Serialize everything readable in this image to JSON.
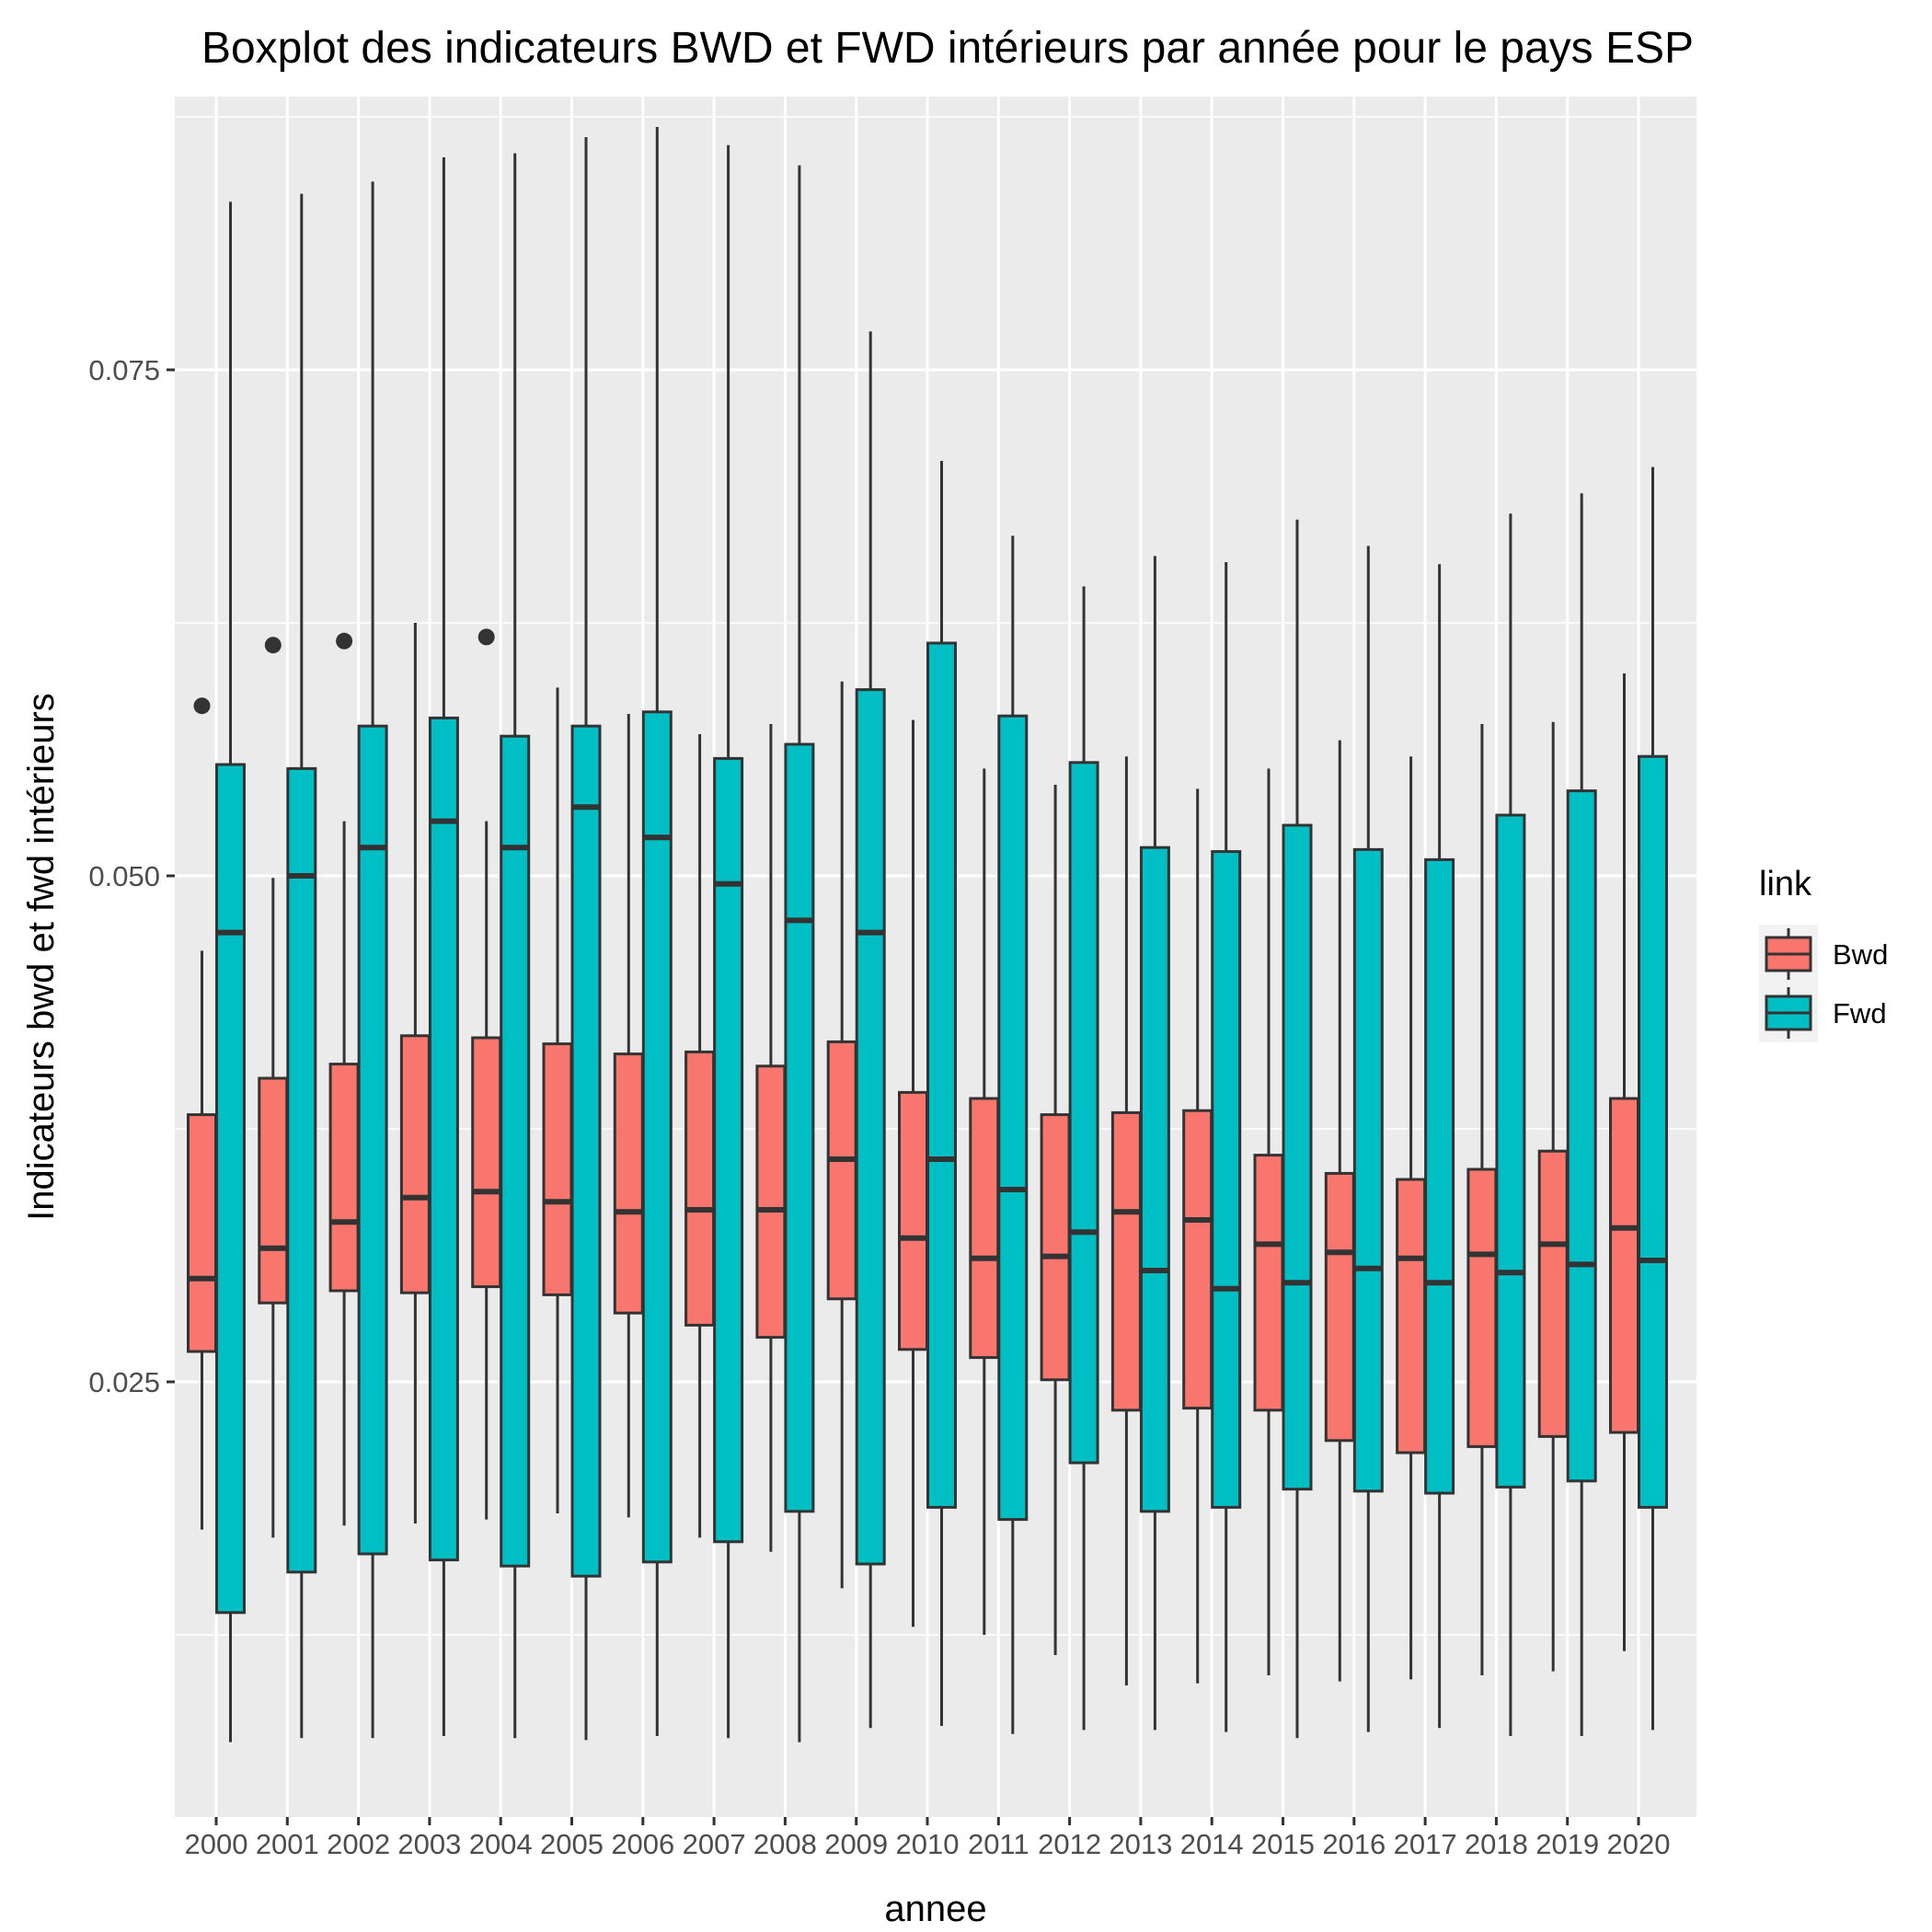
{
  "chart_data": {
    "type": "boxplot",
    "title": "Boxplot des indicateurs BWD et FWD intérieurs par année pour le pays ESP",
    "xlabel": "annee",
    "ylabel": "Indicateurs bwd et fwd intérieurs",
    "ylim": [
      0.0035,
      0.0885
    ],
    "yticks": [
      0.025,
      0.05,
      0.075
    ],
    "ytick_labels": [
      "0.025",
      "0.050",
      "0.075"
    ],
    "grid": true,
    "legend": {
      "title": "link",
      "position": "right",
      "entries": [
        "Bwd",
        "Fwd"
      ]
    },
    "categories": [
      "2000",
      "2001",
      "2002",
      "2003",
      "2004",
      "2005",
      "2006",
      "2007",
      "2008",
      "2009",
      "2010",
      "2011",
      "2012",
      "2013",
      "2014",
      "2015",
      "2016",
      "2017",
      "2018",
      "2019",
      "2020"
    ],
    "series": [
      {
        "name": "Bwd",
        "color": "#F8766D",
        "boxes": [
          {
            "min": 0.0177,
            "q1": 0.0265,
            "median": 0.0301,
            "q3": 0.0382,
            "max": 0.0463,
            "outliers": [
              0.0584
            ]
          },
          {
            "min": 0.0173,
            "q1": 0.0289,
            "median": 0.0316,
            "q3": 0.04,
            "max": 0.0499,
            "outliers": [
              0.0614
            ]
          },
          {
            "min": 0.0179,
            "q1": 0.0295,
            "median": 0.0329,
            "q3": 0.0407,
            "max": 0.0527,
            "outliers": [
              0.0616
            ]
          },
          {
            "min": 0.018,
            "q1": 0.0294,
            "median": 0.0341,
            "q3": 0.0421,
            "max": 0.0625,
            "outliers": []
          },
          {
            "min": 0.0182,
            "q1": 0.0297,
            "median": 0.0344,
            "q3": 0.042,
            "max": 0.0527,
            "outliers": [
              0.0618
            ]
          },
          {
            "min": 0.0185,
            "q1": 0.0293,
            "median": 0.0339,
            "q3": 0.0417,
            "max": 0.0593,
            "outliers": []
          },
          {
            "min": 0.0183,
            "q1": 0.0284,
            "median": 0.0334,
            "q3": 0.0412,
            "max": 0.058,
            "outliers": []
          },
          {
            "min": 0.0173,
            "q1": 0.0278,
            "median": 0.0335,
            "q3": 0.0413,
            "max": 0.057,
            "outliers": []
          },
          {
            "min": 0.0166,
            "q1": 0.0272,
            "median": 0.0335,
            "q3": 0.0406,
            "max": 0.0575,
            "outliers": []
          },
          {
            "min": 0.0148,
            "q1": 0.0291,
            "median": 0.036,
            "q3": 0.0418,
            "max": 0.0596,
            "outliers": []
          },
          {
            "min": 0.0129,
            "q1": 0.0266,
            "median": 0.0321,
            "q3": 0.0393,
            "max": 0.0577,
            "outliers": []
          },
          {
            "min": 0.0125,
            "q1": 0.0262,
            "median": 0.0311,
            "q3": 0.039,
            "max": 0.0553,
            "outliers": []
          },
          {
            "min": 0.0115,
            "q1": 0.0251,
            "median": 0.0312,
            "q3": 0.0382,
            "max": 0.0545,
            "outliers": []
          },
          {
            "min": 0.01,
            "q1": 0.0236,
            "median": 0.0334,
            "q3": 0.0383,
            "max": 0.0559,
            "outliers": []
          },
          {
            "min": 0.0101,
            "q1": 0.0237,
            "median": 0.033,
            "q3": 0.0384,
            "max": 0.0543,
            "outliers": []
          },
          {
            "min": 0.0105,
            "q1": 0.0236,
            "median": 0.0318,
            "q3": 0.0362,
            "max": 0.0553,
            "outliers": []
          },
          {
            "min": 0.0102,
            "q1": 0.0221,
            "median": 0.0314,
            "q3": 0.0353,
            "max": 0.0567,
            "outliers": []
          },
          {
            "min": 0.0103,
            "q1": 0.0215,
            "median": 0.0311,
            "q3": 0.035,
            "max": 0.0559,
            "outliers": []
          },
          {
            "min": 0.0105,
            "q1": 0.0218,
            "median": 0.0313,
            "q3": 0.0355,
            "max": 0.0575,
            "outliers": []
          },
          {
            "min": 0.0107,
            "q1": 0.0223,
            "median": 0.0318,
            "q3": 0.0364,
            "max": 0.0576,
            "outliers": []
          },
          {
            "min": 0.0117,
            "q1": 0.0225,
            "median": 0.0326,
            "q3": 0.039,
            "max": 0.06,
            "outliers": []
          }
        ]
      },
      {
        "name": "Fwd",
        "color": "#00BFC4",
        "boxes": [
          {
            "min": 0.0072,
            "q1": 0.0136,
            "median": 0.0472,
            "q3": 0.0555,
            "max": 0.0833,
            "outliers": []
          },
          {
            "min": 0.0074,
            "q1": 0.0156,
            "median": 0.05,
            "q3": 0.0553,
            "max": 0.0837,
            "outliers": []
          },
          {
            "min": 0.0074,
            "q1": 0.0165,
            "median": 0.0514,
            "q3": 0.0574,
            "max": 0.0843,
            "outliers": []
          },
          {
            "min": 0.0075,
            "q1": 0.0162,
            "median": 0.0527,
            "q3": 0.0578,
            "max": 0.0855,
            "outliers": []
          },
          {
            "min": 0.0074,
            "q1": 0.0159,
            "median": 0.0514,
            "q3": 0.0569,
            "max": 0.0857,
            "outliers": []
          },
          {
            "min": 0.0073,
            "q1": 0.0154,
            "median": 0.0534,
            "q3": 0.0574,
            "max": 0.0865,
            "outliers": []
          },
          {
            "min": 0.0075,
            "q1": 0.0161,
            "median": 0.0519,
            "q3": 0.0581,
            "max": 0.087,
            "outliers": []
          },
          {
            "min": 0.0074,
            "q1": 0.0171,
            "median": 0.0496,
            "q3": 0.0558,
            "max": 0.0861,
            "outliers": []
          },
          {
            "min": 0.0072,
            "q1": 0.0186,
            "median": 0.0478,
            "q3": 0.0565,
            "max": 0.0851,
            "outliers": []
          },
          {
            "min": 0.0079,
            "q1": 0.016,
            "median": 0.0472,
            "q3": 0.0592,
            "max": 0.0769,
            "outliers": []
          },
          {
            "min": 0.008,
            "q1": 0.0188,
            "median": 0.036,
            "q3": 0.0615,
            "max": 0.0705,
            "outliers": []
          },
          {
            "min": 0.0076,
            "q1": 0.0182,
            "median": 0.0345,
            "q3": 0.0579,
            "max": 0.0668,
            "outliers": []
          },
          {
            "min": 0.0078,
            "q1": 0.021,
            "median": 0.0324,
            "q3": 0.0556,
            "max": 0.0643,
            "outliers": []
          },
          {
            "min": 0.0078,
            "q1": 0.0186,
            "median": 0.0305,
            "q3": 0.0514,
            "max": 0.0658,
            "outliers": []
          },
          {
            "min": 0.0077,
            "q1": 0.0188,
            "median": 0.0296,
            "q3": 0.0512,
            "max": 0.0655,
            "outliers": []
          },
          {
            "min": 0.0074,
            "q1": 0.0197,
            "median": 0.0299,
            "q3": 0.0525,
            "max": 0.0676,
            "outliers": []
          },
          {
            "min": 0.0077,
            "q1": 0.0196,
            "median": 0.0306,
            "q3": 0.0513,
            "max": 0.0663,
            "outliers": []
          },
          {
            "min": 0.0079,
            "q1": 0.0195,
            "median": 0.0299,
            "q3": 0.0508,
            "max": 0.0654,
            "outliers": []
          },
          {
            "min": 0.0075,
            "q1": 0.0198,
            "median": 0.0304,
            "q3": 0.053,
            "max": 0.0679,
            "outliers": []
          },
          {
            "min": 0.0075,
            "q1": 0.0201,
            "median": 0.0308,
            "q3": 0.0542,
            "max": 0.0689,
            "outliers": []
          },
          {
            "min": 0.0078,
            "q1": 0.0188,
            "median": 0.031,
            "q3": 0.0559,
            "max": 0.0702,
            "outliers": []
          }
        ]
      }
    ]
  }
}
